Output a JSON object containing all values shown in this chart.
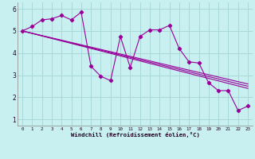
{
  "xlabel": "Windchill (Refroidissement éolien,°C)",
  "bg_color": "#c8f0f0",
  "grid_color": "#a8d8d8",
  "line_color": "#990099",
  "xlim": [
    -0.5,
    23.5
  ],
  "ylim": [
    0.7,
    6.3
  ],
  "yticks": [
    1,
    2,
    3,
    4,
    5,
    6
  ],
  "xticks": [
    0,
    1,
    2,
    3,
    4,
    5,
    6,
    7,
    8,
    9,
    10,
    11,
    12,
    13,
    14,
    15,
    16,
    17,
    18,
    19,
    20,
    21,
    22,
    23
  ],
  "series": [
    [
      0,
      5.0
    ],
    [
      1,
      5.2
    ],
    [
      2,
      5.5
    ],
    [
      3,
      5.55
    ],
    [
      4,
      5.7
    ],
    [
      5,
      5.5
    ],
    [
      6,
      5.85
    ],
    [
      7,
      3.4
    ],
    [
      8,
      2.95
    ],
    [
      9,
      2.75
    ],
    [
      10,
      4.75
    ],
    [
      11,
      3.35
    ],
    [
      12,
      4.75
    ],
    [
      13,
      5.05
    ],
    [
      14,
      5.05
    ],
    [
      15,
      5.25
    ],
    [
      16,
      4.2
    ],
    [
      17,
      3.6
    ],
    [
      18,
      3.55
    ],
    [
      19,
      2.65
    ],
    [
      20,
      2.3
    ],
    [
      21,
      2.3
    ],
    [
      22,
      1.4
    ],
    [
      23,
      1.6
    ]
  ],
  "smooth_lines": [
    [
      [
        0,
        5.0
      ],
      [
        23,
        2.4
      ]
    ],
    [
      [
        0,
        5.0
      ],
      [
        23,
        2.5
      ]
    ],
    [
      [
        0,
        5.0
      ],
      [
        23,
        2.6
      ]
    ]
  ]
}
